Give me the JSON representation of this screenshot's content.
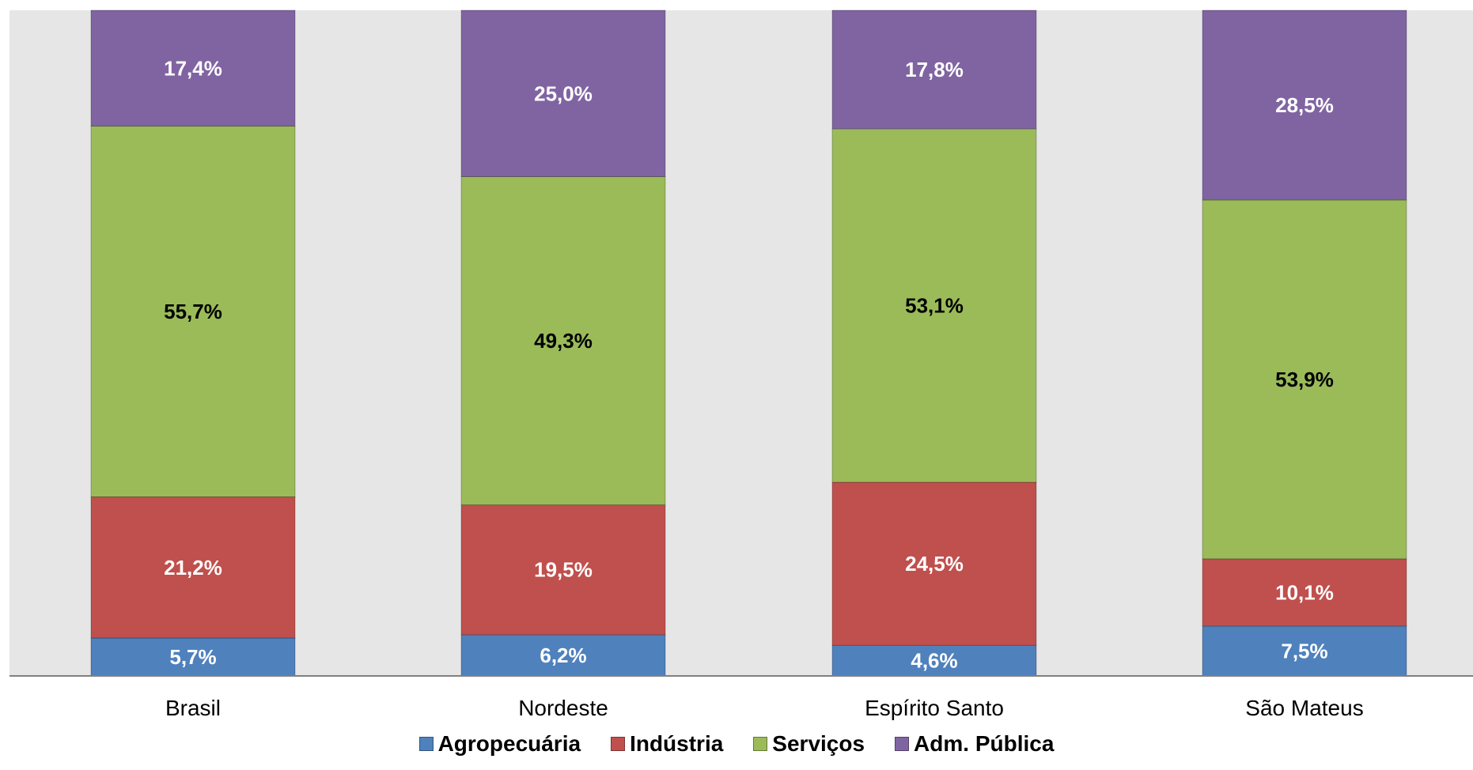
{
  "chart_data": {
    "type": "bar",
    "stacked": true,
    "percent": true,
    "categories": [
      "Brasil",
      "Nordeste",
      "Espírito Santo",
      "São Mateus"
    ],
    "series": [
      {
        "name": "Agropecuária",
        "color": "#4f81bd",
        "values": [
          5.7,
          6.2,
          4.6,
          7.5
        ],
        "labels": [
          "5,7%",
          "6,2%",
          "4,6%",
          "7,5%"
        ],
        "label_color": "#ffffff"
      },
      {
        "name": "Indústria",
        "color": "#c0504d",
        "values": [
          21.2,
          19.5,
          24.5,
          10.1
        ],
        "labels": [
          "21,2%",
          "19,5%",
          "24,5%",
          "10,1%"
        ],
        "label_color": "#ffffff"
      },
      {
        "name": "Serviços",
        "color": "#9bbb59",
        "values": [
          55.7,
          49.3,
          53.1,
          53.9
        ],
        "labels": [
          "55,7%",
          "49,3%",
          "53,1%",
          "53,9%"
        ],
        "label_color": "#000000"
      },
      {
        "name": "Adm. Pública",
        "color": "#8064a2",
        "values": [
          17.4,
          25.0,
          17.8,
          28.5
        ],
        "labels": [
          "17,4%",
          "25,0%",
          "17,8%",
          "28,5%"
        ],
        "label_color": "#ffffff"
      }
    ],
    "ylim": [
      0,
      100
    ],
    "plot_background": "#e6e6e6",
    "legend_position": "bottom"
  }
}
